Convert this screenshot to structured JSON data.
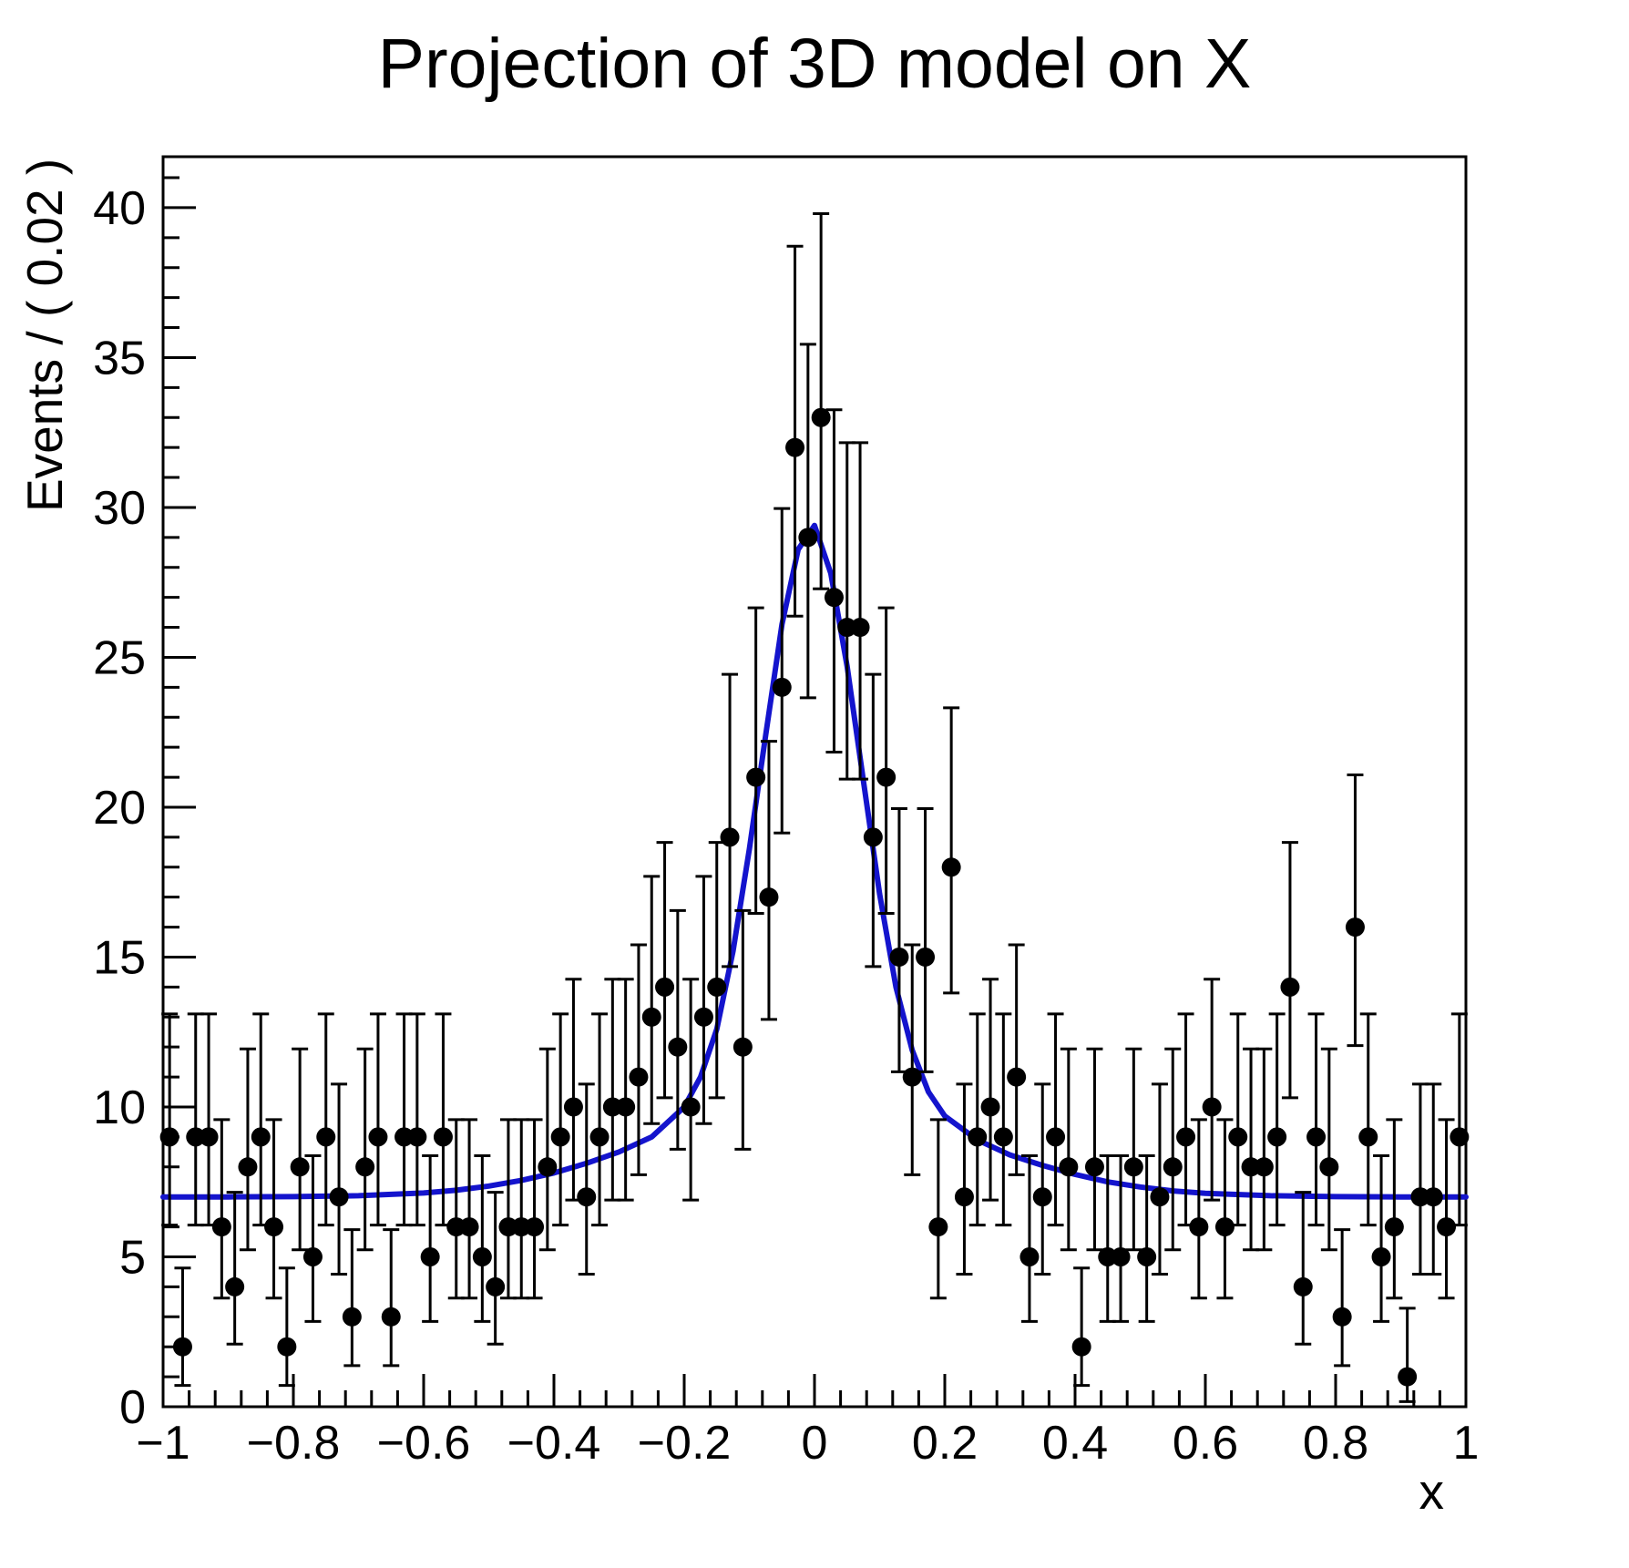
{
  "title": "Projection of 3D model on X",
  "colors": {
    "background": "#ffffff",
    "frame": "#000000",
    "marker": "#000000",
    "error_bar": "#000000",
    "curve": "#1414cd",
    "text": "#000000"
  },
  "chart_data": {
    "type": "scatter",
    "title": "Projection of 3D model on X",
    "xlabel": "x",
    "ylabel": "Events / ( 0.02 )",
    "xlim": [
      -1,
      1
    ],
    "ylim": [
      0,
      41.7
    ],
    "grid": false,
    "legend": false,
    "x_ticks": [
      -1,
      -0.8,
      -0.6,
      -0.4,
      -0.2,
      0,
      0.2,
      0.4,
      0.6,
      0.8,
      1
    ],
    "x_tick_labels": [
      "−1",
      "−0.8",
      "−0.6",
      "−0.4",
      "−0.2",
      "0",
      "0.2",
      "0.4",
      "0.6",
      "0.8",
      "1"
    ],
    "x_minor_tick_step": 0.04,
    "y_ticks": [
      0,
      5,
      10,
      15,
      20,
      25,
      30,
      35,
      40
    ],
    "y_tick_labels": [
      "0",
      "5",
      "10",
      "15",
      "20",
      "25",
      "30",
      "35",
      "40"
    ],
    "y_minor_tick_step": 1,
    "bin_width": 0.02,
    "n_bins": 100,
    "total_events": 1000,
    "error_type": "poisson-68pct-asymmetric",
    "series": [
      {
        "name": "binned-data",
        "type": "points_with_errors",
        "x_start": -0.99,
        "x_step": 0.02,
        "counts": [
          9,
          2,
          9,
          9,
          6,
          4,
          8,
          9,
          6,
          2,
          8,
          5,
          9,
          7,
          3,
          8,
          9,
          3,
          9,
          9,
          5,
          9,
          6,
          6,
          5,
          4,
          6,
          6,
          6,
          8,
          9,
          10,
          7,
          9,
          10,
          10,
          11,
          13,
          14,
          12,
          10,
          13,
          14,
          19,
          12,
          21,
          17,
          24,
          32,
          29,
          33,
          27,
          26,
          26,
          19,
          21,
          15,
          11,
          15,
          6,
          18,
          7,
          9,
          10,
          9,
          11,
          5,
          7,
          9,
          8,
          2,
          8,
          5,
          5,
          8,
          5,
          7,
          8,
          9,
          6,
          10,
          6,
          9,
          8,
          8,
          9,
          14,
          4,
          9,
          8,
          3,
          16,
          9,
          5,
          6,
          1,
          7,
          7,
          6,
          9
        ]
      },
      {
        "name": "model-projection-curve",
        "type": "curve",
        "points": [
          [
            -1.0,
            7.0
          ],
          [
            -0.9,
            7.0
          ],
          [
            -0.8,
            7.01
          ],
          [
            -0.7,
            7.04
          ],
          [
            -0.6,
            7.13
          ],
          [
            -0.55,
            7.22
          ],
          [
            -0.5,
            7.36
          ],
          [
            -0.45,
            7.55
          ],
          [
            -0.4,
            7.8
          ],
          [
            -0.35,
            8.12
          ],
          [
            -0.3,
            8.5
          ],
          [
            -0.25,
            9.0
          ],
          [
            -0.2,
            10.0
          ],
          [
            -0.175,
            11.0
          ],
          [
            -0.15,
            12.6
          ],
          [
            -0.125,
            15.2
          ],
          [
            -0.1,
            18.6
          ],
          [
            -0.075,
            22.4
          ],
          [
            -0.05,
            26.1
          ],
          [
            -0.025,
            28.6
          ],
          [
            0.0,
            29.4
          ],
          [
            0.025,
            27.8
          ],
          [
            0.05,
            24.7
          ],
          [
            0.075,
            20.9
          ],
          [
            0.1,
            17.1
          ],
          [
            0.125,
            14.0
          ],
          [
            0.15,
            11.9
          ],
          [
            0.175,
            10.5
          ],
          [
            0.2,
            9.7
          ],
          [
            0.25,
            8.9
          ],
          [
            0.3,
            8.4
          ],
          [
            0.35,
            8.05
          ],
          [
            0.4,
            7.75
          ],
          [
            0.45,
            7.5
          ],
          [
            0.5,
            7.33
          ],
          [
            0.55,
            7.2
          ],
          [
            0.6,
            7.12
          ],
          [
            0.7,
            7.04
          ],
          [
            0.8,
            7.01
          ],
          [
            0.9,
            7.0
          ],
          [
            1.0,
            7.0
          ]
        ]
      }
    ]
  }
}
